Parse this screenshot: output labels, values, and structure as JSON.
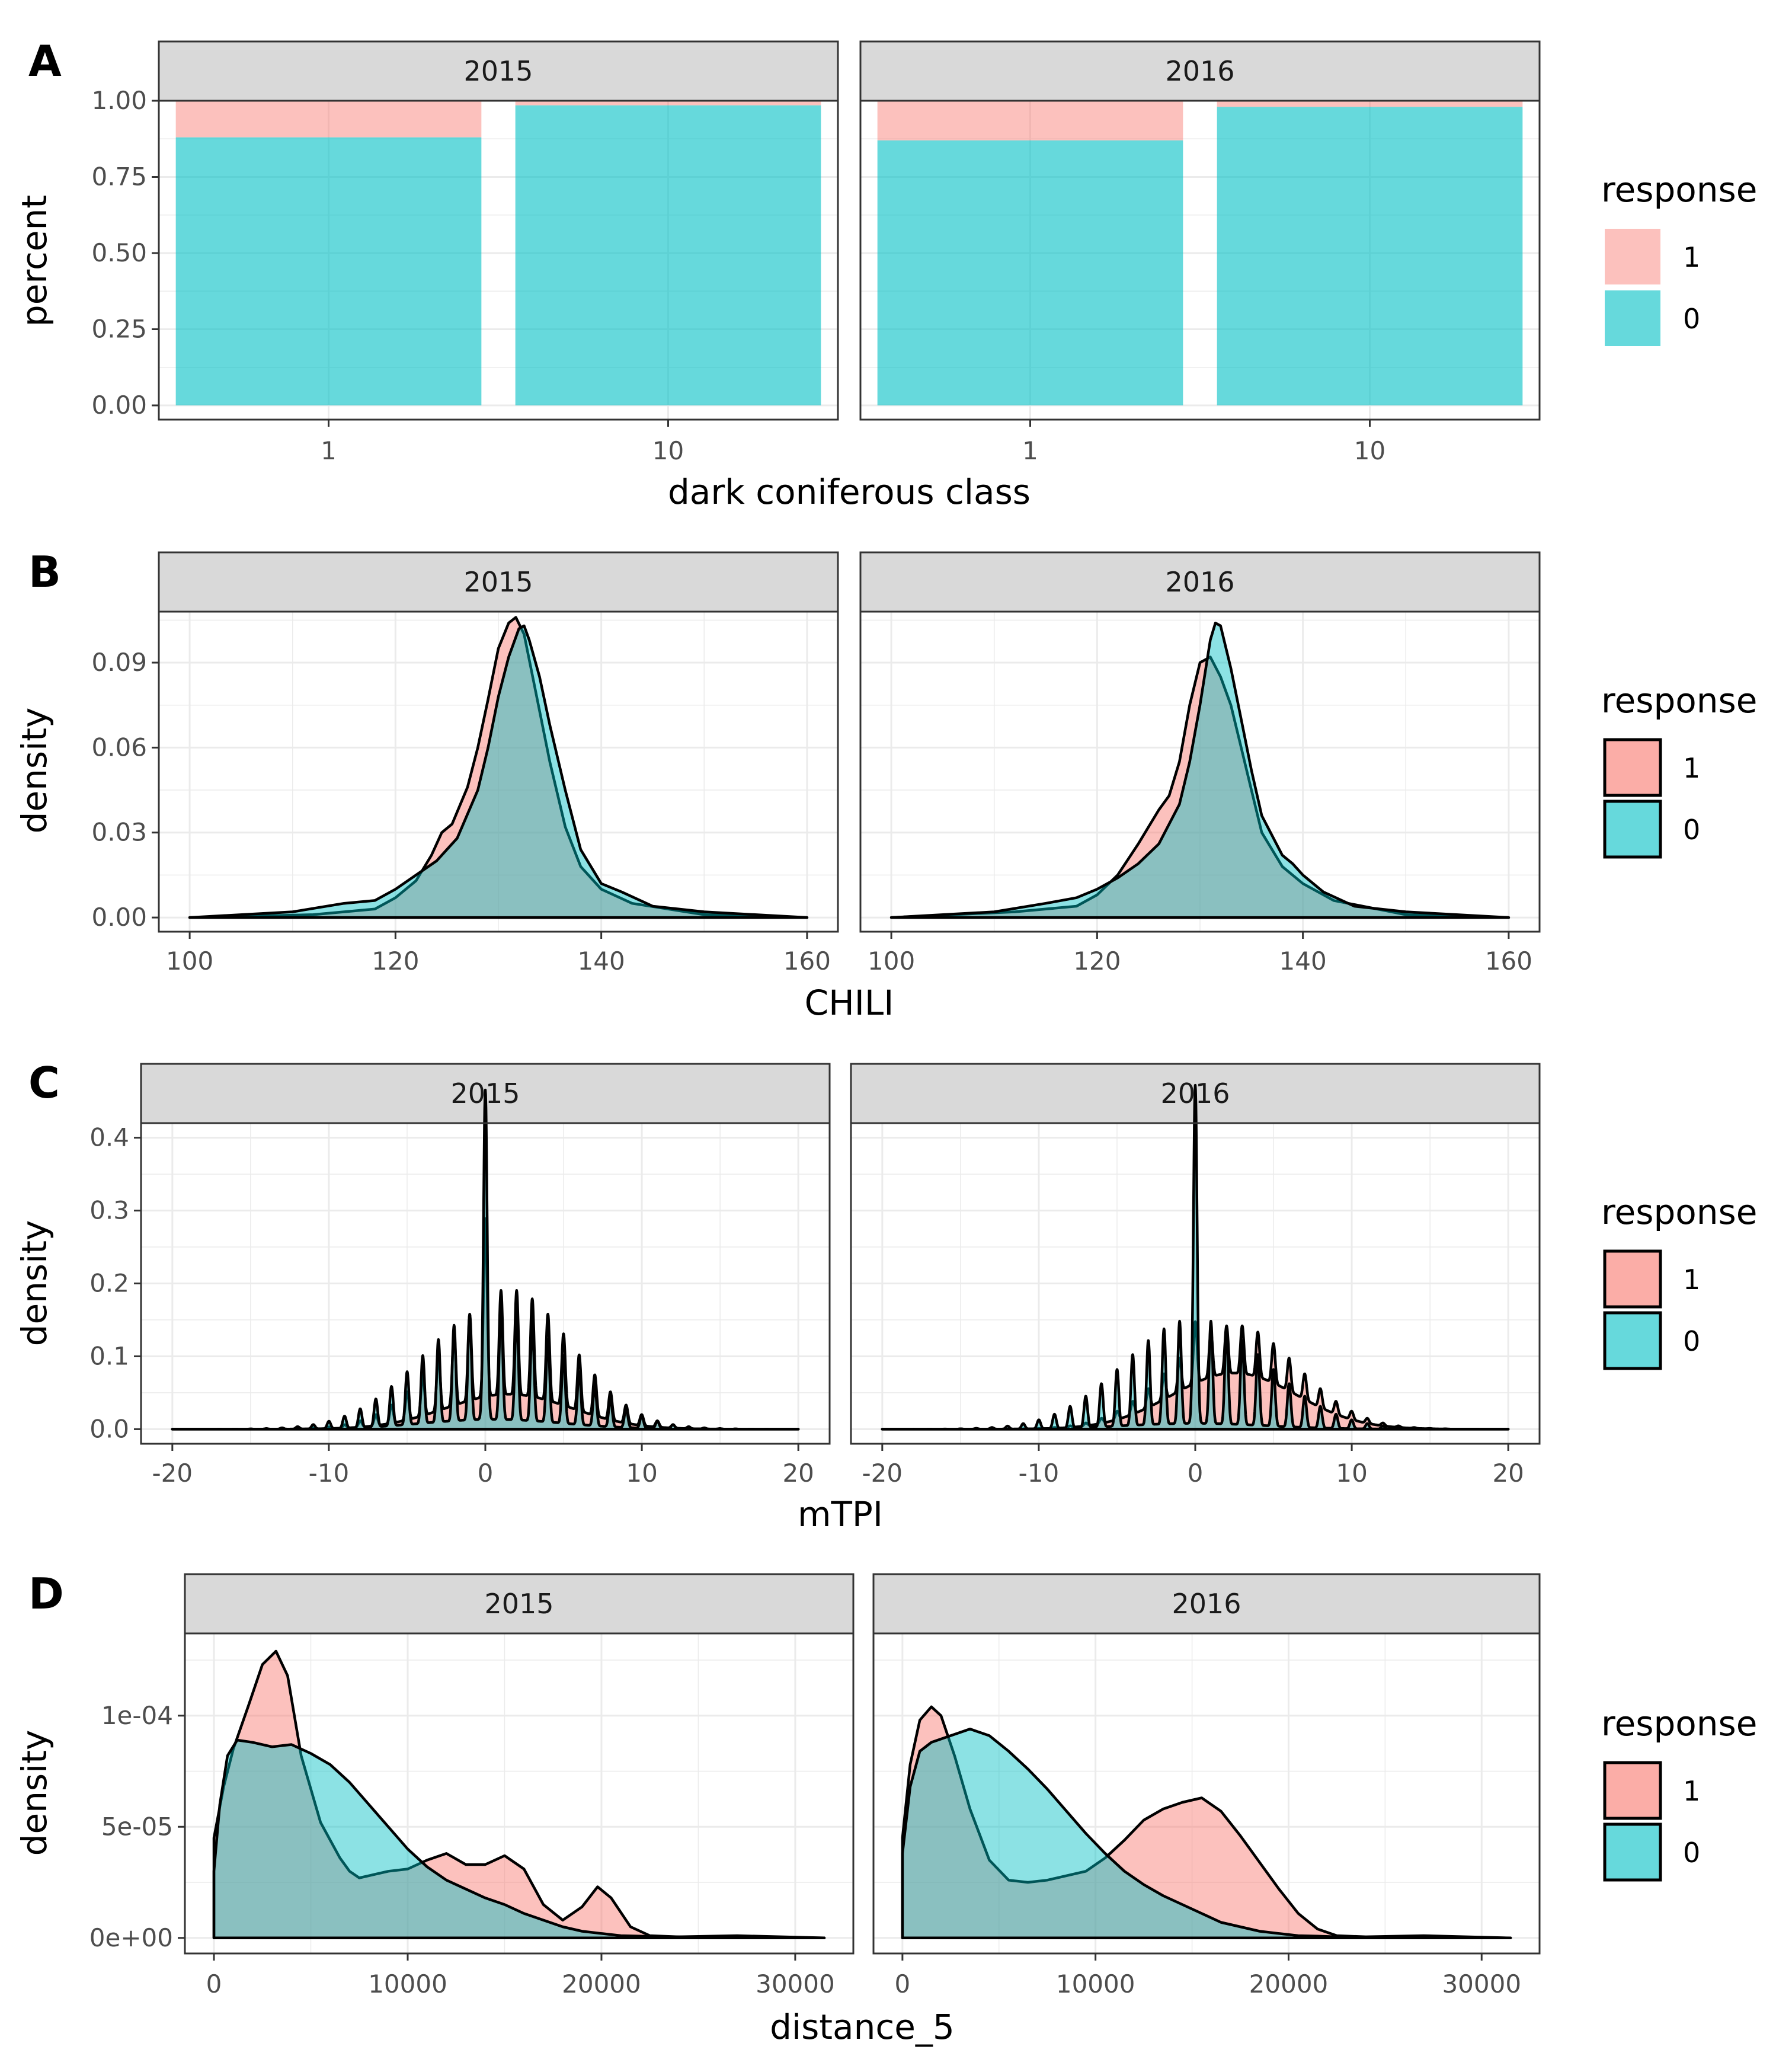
{
  "colors": {
    "response_1": "#F8766D",
    "response_0": "#00BFC4",
    "strip_bg": "#D9D9D9",
    "grid": "#EBEBEB",
    "border": "#333333"
  },
  "chart_data": [
    {
      "panel_letter": "A",
      "type": "bar",
      "stacked": true,
      "xlabel": "dark coniferous class",
      "ylabel": "percent",
      "ylim": [
        0,
        1
      ],
      "yticks": [
        "0.00",
        "0.25",
        "0.50",
        "0.75",
        "1.00"
      ],
      "facets": [
        {
          "label": "2015",
          "categories": [
            "1",
            "10"
          ],
          "series": [
            {
              "name": "1",
              "values": [
                0.12,
                0.015
              ]
            },
            {
              "name": "0",
              "values": [
                0.88,
                0.985
              ]
            }
          ]
        },
        {
          "label": "2016",
          "categories": [
            "1",
            "10"
          ],
          "series": [
            {
              "name": "1",
              "values": [
                0.13,
                0.02
              ]
            },
            {
              "name": "0",
              "values": [
                0.87,
                0.98
              ]
            }
          ]
        }
      ],
      "legend": {
        "title": "response",
        "entries": [
          "1",
          "0"
        ],
        "position": "right"
      }
    },
    {
      "panel_letter": "B",
      "type": "area",
      "xlabel": "CHILI",
      "ylabel": "density",
      "xlim": [
        97,
        163
      ],
      "ylim": [
        -0.005,
        0.108
      ],
      "xticks": [
        "100",
        "120",
        "140",
        "160"
      ],
      "yticks": [
        "0.00",
        "0.03",
        "0.06",
        "0.09"
      ],
      "facets": [
        {
          "label": "2015",
          "series": [
            {
              "name": "1",
              "x": [
                100,
                112,
                118,
                120,
                122,
                123.5,
                124.5,
                125.5,
                127,
                128,
                129,
                130,
                131,
                131.7,
                132.5,
                133.5,
                135,
                136.5,
                138,
                140,
                143,
                150,
                160
              ],
              "values": [
                0.0,
                0.001,
                0.003,
                0.007,
                0.013,
                0.022,
                0.03,
                0.033,
                0.046,
                0.06,
                0.077,
                0.095,
                0.104,
                0.106,
                0.1,
                0.082,
                0.055,
                0.032,
                0.018,
                0.01,
                0.005,
                0.001,
                0.0
              ]
            },
            {
              "name": "0",
              "x": [
                100,
                110,
                115,
                118,
                120,
                122,
                124,
                126,
                128,
                129,
                130,
                131,
                132,
                132.5,
                133,
                134,
                135,
                136.5,
                138,
                140,
                142,
                145,
                150,
                160
              ],
              "values": [
                0.0,
                0.002,
                0.005,
                0.006,
                0.01,
                0.015,
                0.02,
                0.028,
                0.045,
                0.06,
                0.078,
                0.092,
                0.102,
                0.103,
                0.098,
                0.085,
                0.068,
                0.045,
                0.024,
                0.012,
                0.009,
                0.004,
                0.002,
                0.0
              ]
            }
          ]
        },
        {
          "label": "2016",
          "series": [
            {
              "name": "1",
              "x": [
                100,
                112,
                118,
                120,
                122,
                124,
                126,
                127,
                128,
                129,
                130,
                131,
                132,
                133,
                134,
                135,
                136,
                138,
                140,
                143,
                150,
                160
              ],
              "values": [
                0.0,
                0.002,
                0.004,
                0.008,
                0.015,
                0.026,
                0.038,
                0.043,
                0.055,
                0.075,
                0.09,
                0.092,
                0.085,
                0.075,
                0.06,
                0.045,
                0.03,
                0.018,
                0.012,
                0.006,
                0.001,
                0.0
              ]
            },
            {
              "name": "0",
              "x": [
                100,
                110,
                115,
                118,
                120,
                122,
                124,
                126,
                128,
                129,
                130,
                131,
                131.5,
                132,
                133,
                134,
                135,
                136,
                138,
                139,
                140,
                142,
                145,
                150,
                160
              ],
              "values": [
                0.0,
                0.002,
                0.005,
                0.007,
                0.01,
                0.014,
                0.019,
                0.026,
                0.04,
                0.055,
                0.075,
                0.098,
                0.104,
                0.103,
                0.088,
                0.07,
                0.052,
                0.036,
                0.022,
                0.019,
                0.015,
                0.009,
                0.004,
                0.002,
                0.0
              ]
            }
          ]
        }
      ],
      "legend": {
        "title": "response",
        "entries": [
          "1",
          "0"
        ],
        "position": "right"
      }
    },
    {
      "panel_letter": "C",
      "type": "area",
      "xlabel": "mTPI",
      "ylabel": "density",
      "xlim": [
        -22,
        22
      ],
      "ylim": [
        -0.02,
        0.42
      ],
      "xticks": [
        "-20",
        "-10",
        "0",
        "10",
        "20"
      ],
      "yticks": [
        "0.0",
        "0.1",
        "0.2",
        "0.3",
        "0.4"
      ],
      "facets": [
        {
          "label": "2015",
          "series": [
            {
              "name": "1",
              "model": "oscillating",
              "base_sd": 4.0,
              "base_mean": 1.5,
              "peak_scale": 0.12,
              "spike": 0.11,
              "osc_amp": 0.6
            },
            {
              "name": "0",
              "model": "oscillating",
              "base_sd": 4.5,
              "base_mean": 0.5,
              "peak_scale": 0.09,
              "spike": 0.3,
              "osc_amp": 0.85
            }
          ]
        },
        {
          "label": "2016",
          "series": [
            {
              "name": "1",
              "model": "oscillating",
              "base_sd": 4.0,
              "base_mean": 2.5,
              "peak_scale": 0.11,
              "spike": 0.03,
              "osc_amp": 0.3
            },
            {
              "name": "0",
              "model": "oscillating",
              "base_sd": 4.5,
              "base_mean": 0.0,
              "peak_scale": 0.08,
              "spike": 0.32,
              "osc_amp": 0.9
            }
          ]
        }
      ],
      "legend": {
        "title": "response",
        "entries": [
          "1",
          "0"
        ],
        "position": "right"
      }
    },
    {
      "panel_letter": "D",
      "type": "area",
      "xlabel": "distance_5",
      "ylabel": "density",
      "xlim": [
        -1500,
        33000
      ],
      "ylim": [
        -7e-06,
        0.000137
      ],
      "xticks": [
        "0",
        "10000",
        "20000",
        "30000"
      ],
      "xtick_values": [
        0,
        10000,
        20000,
        30000
      ],
      "yticks": [
        "0e+00",
        "5e-05",
        "1e-04"
      ],
      "ytick_values": [
        0,
        5e-05,
        0.0001
      ],
      "facets": [
        {
          "label": "2015",
          "series": [
            {
              "name": "1",
              "x": [
                0,
                500,
                1000,
                1800,
                2500,
                3200,
                3800,
                4500,
                5500,
                6500,
                7000,
                7500,
                8000,
                9000,
                10000,
                11000,
                12000,
                13000,
                14000,
                15000,
                16000,
                17000,
                18000,
                19000,
                19800,
                20500,
                21500,
                22500,
                24000,
                27000,
                31500
              ],
              "values": [
                4.5e-05,
                6.8e-05,
                8.5e-05,
                0.000105,
                0.000123,
                0.000129,
                0.000118,
                8.2e-05,
                5.2e-05,
                3.6e-05,
                3e-05,
                2.7e-05,
                2.8e-05,
                3e-05,
                3.1e-05,
                3.5e-05,
                3.8e-05,
                3.3e-05,
                3.3e-05,
                3.7e-05,
                3.1e-05,
                1.5e-05,
                8e-06,
                1.4e-05,
                2.3e-05,
                1.8e-05,
                5e-06,
                1e-06,
                5e-07,
                1e-06,
                0.0
              ]
            },
            {
              "name": "0",
              "x": [
                0,
                300,
                700,
                1200,
                2000,
                3000,
                4000,
                5000,
                6000,
                7000,
                8000,
                9000,
                10000,
                11000,
                12000,
                13000,
                14000,
                15000,
                16000,
                17000,
                18000,
                19000,
                20000,
                21000,
                22000,
                23000,
                26000,
                31500
              ],
              "values": [
                3e-05,
                6e-05,
                8.2e-05,
                8.9e-05,
                8.8e-05,
                8.6e-05,
                8.7e-05,
                8.3e-05,
                7.8e-05,
                7e-05,
                6e-05,
                5e-05,
                4e-05,
                3.2e-05,
                2.6e-05,
                2.2e-05,
                1.8e-05,
                1.5e-05,
                1.1e-05,
                8e-06,
                5e-06,
                3e-06,
                2e-06,
                1e-06,
                8e-07,
                5e-07,
                4e-07,
                0.0
              ]
            }
          ]
        },
        {
          "label": "2016",
          "series": [
            {
              "name": "1",
              "x": [
                0,
                400,
                900,
                1500,
                2000,
                2700,
                3500,
                4500,
                5500,
                6500,
                7500,
                8500,
                9500,
                10500,
                11500,
                12500,
                13500,
                14500,
                15500,
                16500,
                17500,
                18500,
                19500,
                20500,
                21500,
                22500,
                24000,
                27000,
                31500
              ],
              "values": [
                4.5e-05,
                7.8e-05,
                9.8e-05,
                0.000104,
                0.0001,
                8.2e-05,
                5.8e-05,
                3.5e-05,
                2.6e-05,
                2.5e-05,
                2.6e-05,
                2.8e-05,
                3e-05,
                3.6e-05,
                4.4e-05,
                5.3e-05,
                5.8e-05,
                6.1e-05,
                6.3e-05,
                5.7e-05,
                4.6e-05,
                3.4e-05,
                2.2e-05,
                1.1e-05,
                4e-06,
                1e-06,
                5e-07,
                1e-06,
                0.0
              ]
            },
            {
              "name": "0",
              "x": [
                0,
                400,
                900,
                1500,
                2500,
                3500,
                4500,
                5500,
                6500,
                7500,
                8500,
                9500,
                10500,
                11500,
                12500,
                13500,
                14500,
                15500,
                16500,
                17500,
                18500,
                19500,
                20500,
                21500,
                22500,
                24000,
                27000,
                31500
              ],
              "values": [
                3.8e-05,
                6.8e-05,
                8.4e-05,
                8.8e-05,
                9.1e-05,
                9.4e-05,
                9.1e-05,
                8.4e-05,
                7.6e-05,
                6.7e-05,
                5.7e-05,
                4.7e-05,
                3.8e-05,
                3e-05,
                2.4e-05,
                1.9e-05,
                1.5e-05,
                1.1e-05,
                7e-06,
                5e-06,
                3e-06,
                2e-06,
                1e-06,
                8e-07,
                5e-07,
                3e-07,
                3e-07,
                0.0
              ]
            }
          ]
        }
      ],
      "legend": {
        "title": "response",
        "entries": [
          "1",
          "0"
        ],
        "position": "right"
      }
    }
  ]
}
